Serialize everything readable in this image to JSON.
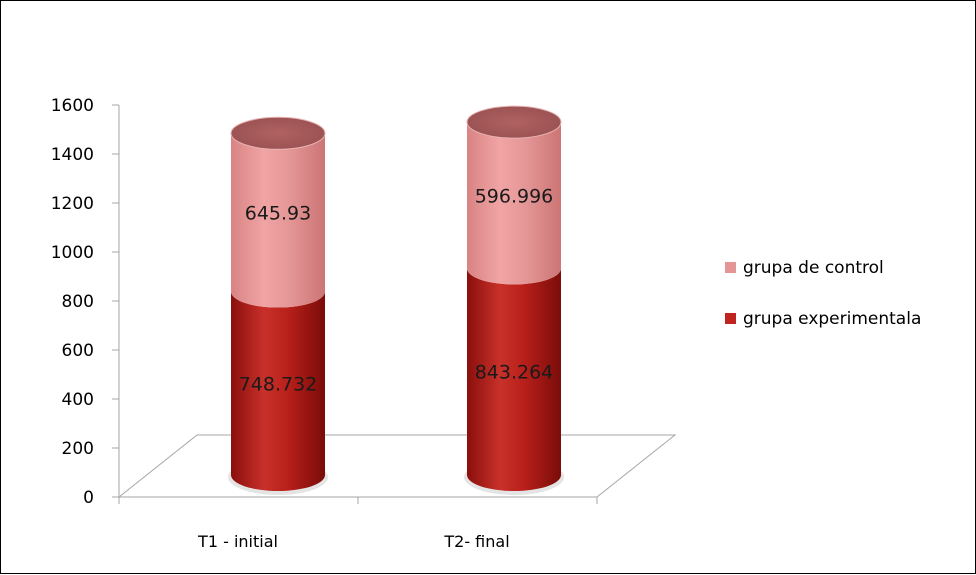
{
  "chart_data": {
    "type": "bar",
    "stacked": true,
    "three_d": true,
    "bar_shape": "cylinder",
    "title": "",
    "xlabel": "",
    "ylabel": "",
    "categories": [
      "T1 - initial",
      "T2- final"
    ],
    "ylim": [
      0,
      1600
    ],
    "yticks": [
      0,
      200,
      400,
      600,
      800,
      1000,
      1200,
      1400,
      1600
    ],
    "grid": false,
    "legend": "right",
    "series": [
      {
        "name": "grupa experimentala",
        "values": [
          748.732,
          843.264
        ],
        "labels": [
          "748.732",
          "843.264"
        ],
        "color": "#c0241f"
      },
      {
        "name": "grupa de control",
        "values": [
          645.93,
          596.996
        ],
        "labels": [
          "645.93",
          "596.996"
        ],
        "color": "#e49595"
      }
    ]
  }
}
